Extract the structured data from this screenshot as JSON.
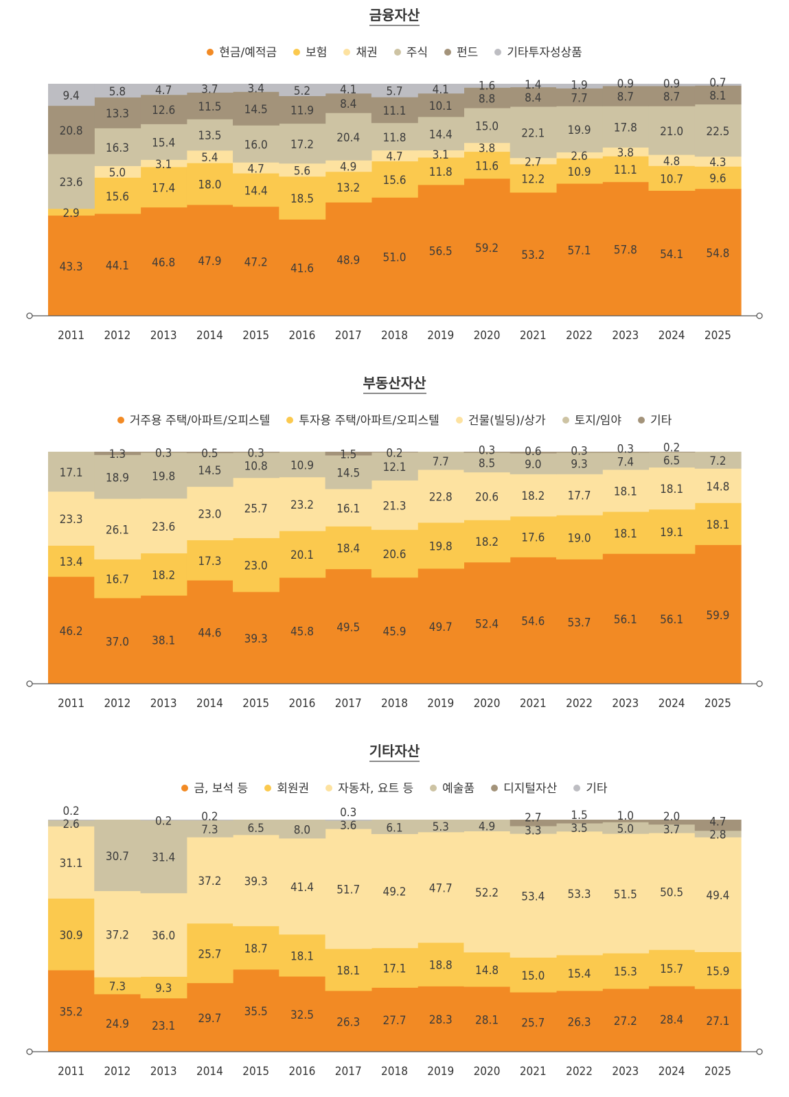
{
  "chart_data": [
    {
      "type": "area",
      "title": "금융자산",
      "categories": [
        "2011",
        "2012",
        "2013",
        "2014",
        "2015",
        "2016",
        "2017",
        "2018",
        "2019",
        "2020",
        "2021",
        "2022",
        "2023",
        "2024",
        "2025"
      ],
      "ylim": [
        0,
        100
      ],
      "grid": false,
      "legend_position": "top-center",
      "series": [
        {
          "name": "현금/예적금",
          "color": "#F28A24",
          "values": [
            43.3,
            44.1,
            46.8,
            47.9,
            47.2,
            41.6,
            48.9,
            51.0,
            56.5,
            59.2,
            53.2,
            57.1,
            57.8,
            54.1,
            54.8
          ]
        },
        {
          "name": "보험",
          "color": "#FBC94E",
          "values": [
            2.9,
            15.6,
            17.4,
            18.0,
            14.4,
            18.5,
            13.2,
            15.6,
            11.8,
            11.6,
            12.2,
            10.9,
            11.1,
            10.7,
            9.6
          ]
        },
        {
          "name": "채권",
          "color": "#FDE2A0",
          "values": [
            null,
            5.0,
            3.1,
            5.4,
            4.7,
            5.6,
            4.9,
            4.7,
            3.1,
            3.8,
            2.7,
            2.6,
            3.8,
            4.8,
            4.3
          ]
        },
        {
          "name": "주식",
          "color": "#CDC3A3",
          "values": [
            23.6,
            16.3,
            15.4,
            13.5,
            16.0,
            17.2,
            20.4,
            11.8,
            14.4,
            15.0,
            22.1,
            19.9,
            17.8,
            21.0,
            22.5
          ]
        },
        {
          "name": "펀드",
          "color": "#A3937A",
          "values": [
            20.8,
            13.3,
            12.6,
            11.5,
            14.5,
            11.9,
            8.4,
            11.1,
            10.1,
            8.8,
            8.4,
            7.7,
            8.7,
            8.7,
            8.1
          ]
        },
        {
          "name": "기타투자성상품",
          "color": "#BDBDC2",
          "values": [
            9.4,
            5.8,
            4.7,
            3.7,
            3.4,
            5.2,
            4.1,
            5.7,
            4.1,
            1.6,
            1.4,
            1.9,
            0.9,
            0.9,
            0.7
          ]
        }
      ]
    },
    {
      "type": "area",
      "title": "부동산자산",
      "categories": [
        "2011",
        "2012",
        "2013",
        "2014",
        "2015",
        "2016",
        "2017",
        "2018",
        "2019",
        "2020",
        "2021",
        "2022",
        "2023",
        "2024",
        "2025"
      ],
      "ylim": [
        0,
        100
      ],
      "grid": false,
      "legend_position": "top-center",
      "series": [
        {
          "name": "거주용 주택/아파트/오피스텔",
          "color": "#F28A24",
          "values": [
            46.2,
            37.0,
            38.1,
            44.6,
            39.3,
            45.8,
            49.5,
            45.9,
            49.7,
            52.4,
            54.6,
            53.7,
            56.1,
            56.1,
            59.9
          ]
        },
        {
          "name": "투자용 주택/아파트/오피스텔",
          "color": "#FBC94E",
          "values": [
            13.4,
            16.7,
            18.2,
            17.3,
            23.0,
            20.1,
            18.4,
            20.6,
            19.8,
            18.2,
            17.6,
            19.0,
            18.1,
            19.1,
            18.1
          ]
        },
        {
          "name": "건물(빌딩)/상가",
          "color": "#FDE2A0",
          "values": [
            23.3,
            26.1,
            23.6,
            23.0,
            25.7,
            23.2,
            16.1,
            21.3,
            22.8,
            20.6,
            18.2,
            17.7,
            18.1,
            18.1,
            14.8
          ]
        },
        {
          "name": "토지/임야",
          "color": "#CDC3A3",
          "values": [
            17.1,
            18.9,
            19.8,
            14.5,
            10.8,
            10.9,
            14.5,
            12.1,
            7.7,
            8.5,
            9.0,
            9.3,
            7.4,
            6.5,
            7.2
          ]
        },
        {
          "name": "기타",
          "color": "#A3937A",
          "values": [
            null,
            1.3,
            0.3,
            0.5,
            0.3,
            null,
            1.5,
            0.2,
            null,
            0.3,
            0.6,
            0.3,
            0.3,
            0.2,
            null
          ]
        }
      ]
    },
    {
      "type": "area",
      "title": "기타자산",
      "categories": [
        "2011",
        "2012",
        "2013",
        "2014",
        "2015",
        "2016",
        "2017",
        "2018",
        "2019",
        "2020",
        "2021",
        "2022",
        "2023",
        "2024",
        "2025"
      ],
      "ylim": [
        0,
        100
      ],
      "grid": false,
      "legend_position": "top-center",
      "series": [
        {
          "name": "금, 보석 등",
          "color": "#F28A24",
          "values": [
            35.2,
            24.9,
            23.1,
            29.7,
            35.5,
            32.5,
            26.3,
            27.7,
            28.3,
            28.1,
            25.7,
            26.3,
            27.2,
            28.4,
            27.1
          ]
        },
        {
          "name": "회원권",
          "color": "#FBC94E",
          "values": [
            30.9,
            7.3,
            9.3,
            25.7,
            18.7,
            18.1,
            18.1,
            17.1,
            18.8,
            14.8,
            15.0,
            15.4,
            15.3,
            15.7,
            15.9
          ]
        },
        {
          "name": "자동차, 요트 등",
          "color": "#FDE2A0",
          "values": [
            31.1,
            37.2,
            36.0,
            37.2,
            39.3,
            41.4,
            51.7,
            49.2,
            47.7,
            52.2,
            53.4,
            53.3,
            51.5,
            50.5,
            49.4
          ]
        },
        {
          "name": "예술품",
          "color": "#CDC3A3",
          "values": [
            2.6,
            30.7,
            31.4,
            7.3,
            6.5,
            8.0,
            3.6,
            6.1,
            5.3,
            4.9,
            3.3,
            3.5,
            5.0,
            3.7,
            2.8
          ]
        },
        {
          "name": "디지털자산",
          "color": "#A3937A",
          "values": [
            null,
            null,
            null,
            null,
            null,
            null,
            null,
            null,
            null,
            null,
            2.7,
            1.5,
            1.0,
            2.0,
            4.7
          ]
        },
        {
          "name": "기타",
          "color": "#BDBDC2",
          "values": [
            0.2,
            null,
            0.2,
            0.2,
            null,
            null,
            0.3,
            null,
            null,
            null,
            null,
            null,
            null,
            null,
            null
          ]
        }
      ]
    }
  ]
}
